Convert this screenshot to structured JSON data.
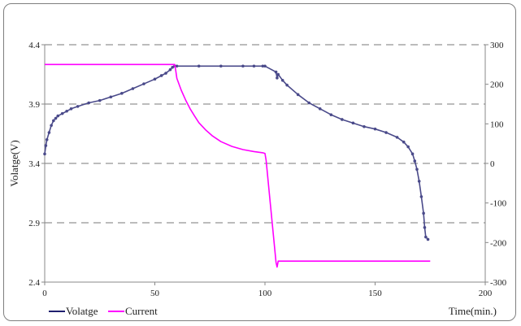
{
  "chart_data": {
    "type": "line",
    "title": "",
    "xlabel": "Time(min.)",
    "ylabel": "Volatge(V)",
    "y2label": "",
    "xlim": [
      0,
      200
    ],
    "ylim": [
      2.4,
      4.4
    ],
    "y2lim": [
      -300,
      300
    ],
    "x_ticks": [
      0,
      50,
      100,
      150,
      200
    ],
    "y_ticks": [
      2.4,
      2.9,
      3.4,
      3.9,
      4.4
    ],
    "y_tick_labels": [
      "2.4",
      "2.9",
      "3.4",
      "3.9",
      "4.4"
    ],
    "y2_ticks": [
      -300,
      -200,
      -100,
      0,
      100,
      200,
      300
    ],
    "grid": "horizontal dashed",
    "legend_position": "bottom-left",
    "series": [
      {
        "name": "Volatge",
        "axis": "left",
        "color": "#4a4a8a",
        "x": [
          0,
          0.5,
          1,
          2,
          3,
          4,
          5,
          6,
          8,
          10,
          12,
          15,
          20,
          25,
          30,
          35,
          40,
          45,
          50,
          53,
          55,
          57,
          58,
          59,
          60,
          70,
          80,
          90,
          95,
          99,
          100,
          105,
          105.5,
          106,
          108,
          110,
          115,
          120,
          125,
          130,
          135,
          140,
          145,
          150,
          155,
          160,
          163,
          165,
          167,
          168,
          169,
          170,
          171,
          172,
          172.5,
          173,
          174
        ],
        "y": [
          3.48,
          3.55,
          3.6,
          3.66,
          3.72,
          3.76,
          3.78,
          3.8,
          3.82,
          3.84,
          3.86,
          3.88,
          3.91,
          3.93,
          3.96,
          3.99,
          4.03,
          4.07,
          4.11,
          4.14,
          4.16,
          4.19,
          4.21,
          4.22,
          4.22,
          4.22,
          4.22,
          4.22,
          4.22,
          4.22,
          4.22,
          4.17,
          4.12,
          4.15,
          4.1,
          4.06,
          3.98,
          3.91,
          3.86,
          3.81,
          3.77,
          3.74,
          3.71,
          3.69,
          3.66,
          3.62,
          3.58,
          3.54,
          3.48,
          3.42,
          3.35,
          3.25,
          3.12,
          2.98,
          2.86,
          2.78,
          2.76
        ]
      },
      {
        "name": "Current",
        "axis": "right",
        "color": "#ff00ff",
        "x": [
          0,
          59,
          59.5,
          60,
          62,
          64,
          66,
          68,
          70,
          73,
          76,
          80,
          85,
          90,
          95,
          99,
          100,
          100.5,
          105,
          105.5,
          106,
          110,
          130,
          150,
          170,
          175
        ],
        "y": [
          250,
          250,
          235,
          215,
          185,
          160,
          138,
          120,
          103,
          85,
          70,
          55,
          43,
          35,
          30,
          27,
          25,
          8,
          -250,
          -262,
          -247,
          -247,
          -247,
          -247,
          -247,
          -247
        ]
      }
    ]
  }
}
